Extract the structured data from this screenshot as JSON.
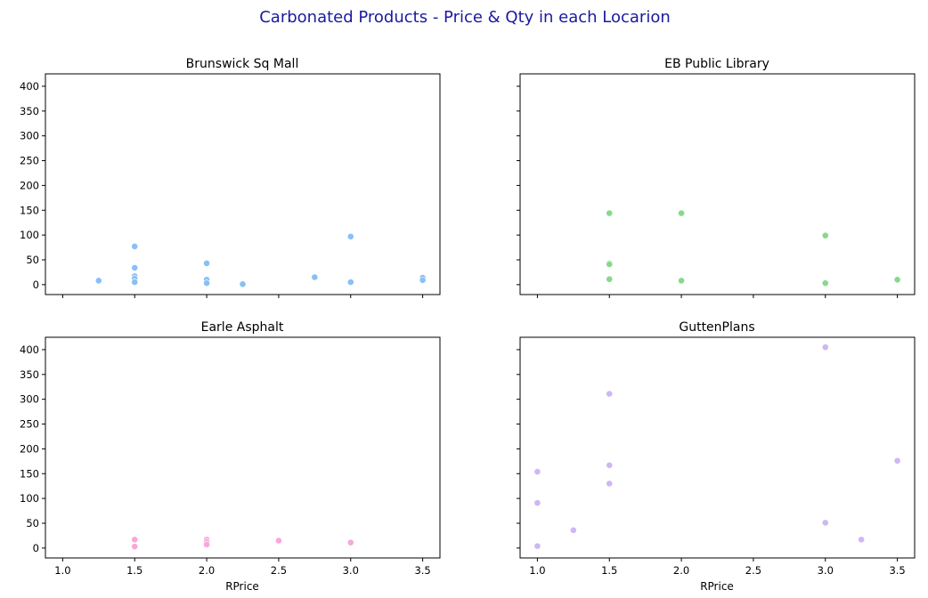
{
  "figure": {
    "title": "Carbonated Products - Price & Qty in each Locarion",
    "title_color": "#1a1aa0"
  },
  "chart_data": [
    {
      "type": "scatter",
      "title": "Brunswick Sq Mall",
      "xlabel": "",
      "ylabel": "",
      "color": "#89bff7",
      "xlim": [
        0.88,
        3.62
      ],
      "ylim": [
        -20,
        425
      ],
      "xticks": [
        1.0,
        1.5,
        2.0,
        2.5,
        3.0,
        3.5
      ],
      "xtick_labels": [
        "",
        "",
        "",
        "",
        "",
        ""
      ],
      "yticks": [
        0,
        50,
        100,
        150,
        200,
        250,
        300,
        350,
        400
      ],
      "ytick_labels": [
        "0",
        "50",
        "100",
        "150",
        "200",
        "250",
        "300",
        "350",
        "400"
      ],
      "points": [
        {
          "x": 1.25,
          "y": 8
        },
        {
          "x": 1.5,
          "y": 77
        },
        {
          "x": 1.5,
          "y": 34
        },
        {
          "x": 1.5,
          "y": 17
        },
        {
          "x": 1.5,
          "y": 12
        },
        {
          "x": 1.5,
          "y": 5
        },
        {
          "x": 2.0,
          "y": 43
        },
        {
          "x": 2.0,
          "y": 10
        },
        {
          "x": 2.0,
          "y": 3
        },
        {
          "x": 2.25,
          "y": 1
        },
        {
          "x": 2.75,
          "y": 15
        },
        {
          "x": 3.0,
          "y": 97
        },
        {
          "x": 3.0,
          "y": 5
        },
        {
          "x": 3.5,
          "y": 14
        },
        {
          "x": 3.5,
          "y": 9
        }
      ]
    },
    {
      "type": "scatter",
      "title": "EB Public Library",
      "xlabel": "",
      "ylabel": "",
      "color": "#86d98a",
      "xlim": [
        0.88,
        3.62
      ],
      "ylim": [
        -20,
        425
      ],
      "xticks": [
        1.0,
        1.5,
        2.0,
        2.5,
        3.0,
        3.5
      ],
      "xtick_labels": [
        "",
        "",
        "",
        "",
        "",
        ""
      ],
      "yticks": [
        0,
        50,
        100,
        150,
        200,
        250,
        300,
        350,
        400
      ],
      "ytick_labels": [
        "",
        "",
        "",
        "",
        "",
        "",
        "",
        "",
        ""
      ],
      "points": [
        {
          "x": 1.5,
          "y": 144
        },
        {
          "x": 1.5,
          "y": 43
        },
        {
          "x": 1.5,
          "y": 41
        },
        {
          "x": 1.5,
          "y": 11
        },
        {
          "x": 2.0,
          "y": 144
        },
        {
          "x": 2.0,
          "y": 8
        },
        {
          "x": 3.0,
          "y": 99
        },
        {
          "x": 3.0,
          "y": 3
        },
        {
          "x": 3.5,
          "y": 10
        }
      ]
    },
    {
      "type": "scatter",
      "title": "Earle Asphalt",
      "xlabel": "RPrice",
      "ylabel": "",
      "color": "#f7a8da",
      "xlim": [
        0.88,
        3.62
      ],
      "ylim": [
        -20,
        425
      ],
      "xticks": [
        1.0,
        1.5,
        2.0,
        2.5,
        3.0,
        3.5
      ],
      "xtick_labels": [
        "1.0",
        "1.5",
        "2.0",
        "2.5",
        "3.0",
        "3.5"
      ],
      "yticks": [
        0,
        50,
        100,
        150,
        200,
        250,
        300,
        350,
        400
      ],
      "ytick_labels": [
        "0",
        "50",
        "100",
        "150",
        "200",
        "250",
        "300",
        "350",
        "400"
      ],
      "points": [
        {
          "x": 1.5,
          "y": 17
        },
        {
          "x": 1.5,
          "y": 3
        },
        {
          "x": 2.0,
          "y": 17
        },
        {
          "x": 2.0,
          "y": 12
        },
        {
          "x": 2.0,
          "y": 7
        },
        {
          "x": 2.5,
          "y": 15
        },
        {
          "x": 3.0,
          "y": 11
        }
      ]
    },
    {
      "type": "scatter",
      "title": "GuttenPlans",
      "xlabel": "RPrice",
      "ylabel": "",
      "color": "#cdb7f6",
      "xlim": [
        0.88,
        3.62
      ],
      "ylim": [
        -20,
        425
      ],
      "xticks": [
        1.0,
        1.5,
        2.0,
        2.5,
        3.0,
        3.5
      ],
      "xtick_labels": [
        "1.0",
        "1.5",
        "2.0",
        "2.5",
        "3.0",
        "3.5"
      ],
      "yticks": [
        0,
        50,
        100,
        150,
        200,
        250,
        300,
        350,
        400
      ],
      "ytick_labels": [
        "",
        "",
        "",
        "",
        "",
        "",
        "",
        "",
        ""
      ],
      "points": [
        {
          "x": 1.0,
          "y": 154
        },
        {
          "x": 1.0,
          "y": 91
        },
        {
          "x": 1.0,
          "y": 4
        },
        {
          "x": 1.25,
          "y": 36
        },
        {
          "x": 1.5,
          "y": 311
        },
        {
          "x": 1.5,
          "y": 167
        },
        {
          "x": 1.5,
          "y": 130
        },
        {
          "x": 3.0,
          "y": 405
        },
        {
          "x": 3.0,
          "y": 51
        },
        {
          "x": 3.25,
          "y": 17
        },
        {
          "x": 3.5,
          "y": 176
        }
      ]
    }
  ]
}
